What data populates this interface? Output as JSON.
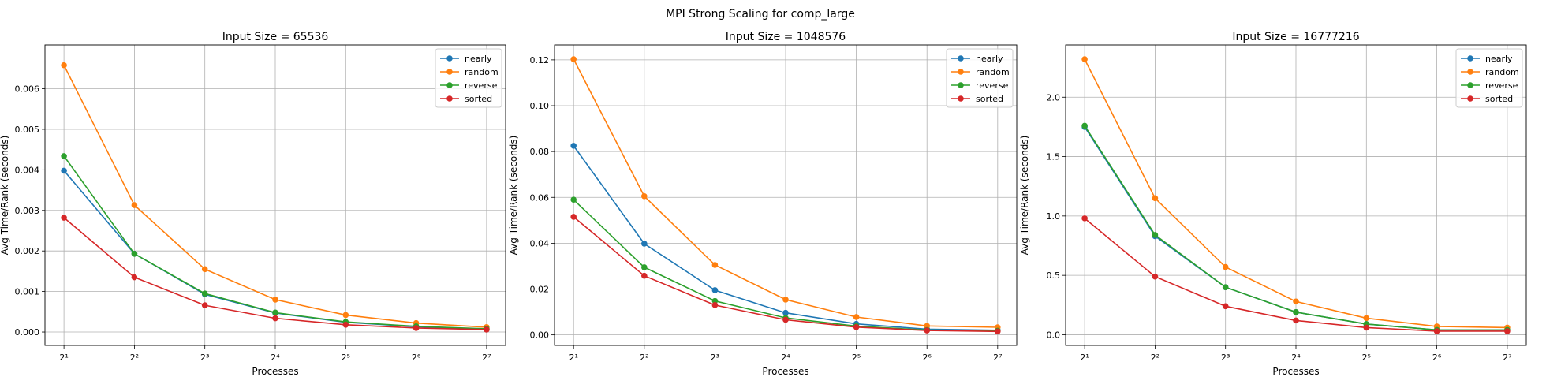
{
  "suptitle": "MPI Strong Scaling for comp_large",
  "chart_data": [
    {
      "type": "line",
      "title": "Input Size = 65536",
      "xlabel": "Processes",
      "ylabel": "Avg Time/Rank (seconds)",
      "xscale": "log2",
      "x": [
        2,
        4,
        8,
        16,
        32,
        64,
        128
      ],
      "xticklabels": [
        "2¹",
        "2²",
        "2³",
        "2⁴",
        "2⁵",
        "2⁶",
        "2⁷"
      ],
      "ylim": [
        -0.00033,
        0.00708
      ],
      "yticks": [
        0.0,
        0.001,
        0.002,
        0.003,
        0.004,
        0.005,
        0.006
      ],
      "yticklabels": [
        "0.000",
        "0.001",
        "0.002",
        "0.003",
        "0.004",
        "0.005",
        "0.006"
      ],
      "grid": true,
      "legend": "top-right",
      "series": [
        {
          "name": "nearly",
          "color": "#1f77b4",
          "values": [
            0.00398,
            0.00193,
            0.00093,
            0.00047,
            0.00024,
            0.00013,
            7e-05
          ]
        },
        {
          "name": "random",
          "color": "#ff7f0e",
          "values": [
            0.00658,
            0.00313,
            0.00155,
            0.0008,
            0.00042,
            0.00022,
            0.00012
          ]
        },
        {
          "name": "reverse",
          "color": "#2ca02c",
          "values": [
            0.00434,
            0.00193,
            0.00095,
            0.00048,
            0.00025,
            0.00014,
            8e-05
          ]
        },
        {
          "name": "sorted",
          "color": "#d62728",
          "values": [
            0.00282,
            0.00135,
            0.00066,
            0.00034,
            0.00018,
            0.0001,
            6e-05
          ]
        }
      ]
    },
    {
      "type": "line",
      "title": "Input Size = 1048576",
      "xlabel": "Processes",
      "ylabel": "Avg Time/Rank (seconds)",
      "xscale": "log2",
      "x": [
        2,
        4,
        8,
        16,
        32,
        64,
        128
      ],
      "xticklabels": [
        "2¹",
        "2²",
        "2³",
        "2⁴",
        "2⁵",
        "2⁶",
        "2⁷"
      ],
      "ylim": [
        -0.0046,
        0.1265
      ],
      "yticks": [
        0.0,
        0.02,
        0.04,
        0.06,
        0.08,
        0.1,
        0.12
      ],
      "yticklabels": [
        "0.00",
        "0.02",
        "0.04",
        "0.06",
        "0.08",
        "0.10",
        "0.12"
      ],
      "grid": true,
      "legend": "top-right",
      "series": [
        {
          "name": "nearly",
          "color": "#1f77b4",
          "values": [
            0.0825,
            0.0398,
            0.0195,
            0.0096,
            0.0048,
            0.0025,
            0.002
          ]
        },
        {
          "name": "random",
          "color": "#ff7f0e",
          "values": [
            0.1203,
            0.0605,
            0.0305,
            0.0154,
            0.0078,
            0.0039,
            0.0033
          ]
        },
        {
          "name": "reverse",
          "color": "#2ca02c",
          "values": [
            0.059,
            0.0295,
            0.0148,
            0.0074,
            0.0038,
            0.0021,
            0.0018
          ]
        },
        {
          "name": "sorted",
          "color": "#d62728",
          "values": [
            0.0515,
            0.0258,
            0.013,
            0.0066,
            0.0034,
            0.0019,
            0.0015
          ]
        }
      ]
    },
    {
      "type": "line",
      "title": "Input Size = 16777216",
      "xlabel": "Processes",
      "ylabel": "Avg Time/Rank (seconds)",
      "xscale": "log2",
      "x": [
        2,
        4,
        8,
        16,
        32,
        64,
        128
      ],
      "xticklabels": [
        "2¹",
        "2²",
        "2³",
        "2⁴",
        "2⁵",
        "2⁶",
        "2⁷"
      ],
      "ylim": [
        -0.09,
        2.44
      ],
      "yticks": [
        0.0,
        0.5,
        1.0,
        1.5,
        2.0
      ],
      "yticklabels": [
        "0.0",
        "0.5",
        "1.0",
        "1.5",
        "2.0"
      ],
      "grid": true,
      "legend": "top-right",
      "series": [
        {
          "name": "nearly",
          "color": "#1f77b4",
          "values": [
            1.75,
            0.83,
            0.4,
            0.19,
            0.09,
            0.04,
            0.04
          ]
        },
        {
          "name": "random",
          "color": "#ff7f0e",
          "values": [
            2.32,
            1.15,
            0.57,
            0.28,
            0.14,
            0.07,
            0.06
          ]
        },
        {
          "name": "reverse",
          "color": "#2ca02c",
          "values": [
            1.76,
            0.84,
            0.4,
            0.19,
            0.09,
            0.04,
            0.04
          ]
        },
        {
          "name": "sorted",
          "color": "#d62728",
          "values": [
            0.98,
            0.49,
            0.24,
            0.12,
            0.06,
            0.03,
            0.03
          ]
        }
      ]
    }
  ]
}
